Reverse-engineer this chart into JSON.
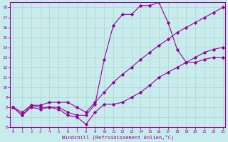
{
  "xlabel": "Windchill (Refroidissement éolien,°C)",
  "background_color": "#c8ecec",
  "grid_color": "#b0d8d8",
  "line_color": "#990099",
  "xlim": [
    0,
    23
  ],
  "ylim": [
    6,
    18.5
  ],
  "xticks": [
    0,
    1,
    2,
    3,
    4,
    5,
    6,
    7,
    8,
    9,
    10,
    11,
    12,
    13,
    14,
    15,
    16,
    17,
    18,
    19,
    20,
    21,
    22,
    23
  ],
  "yticks": [
    6,
    7,
    8,
    9,
    10,
    11,
    12,
    13,
    14,
    15,
    16,
    17,
    18
  ],
  "line1_x": [
    0,
    1,
    2,
    3,
    4,
    5,
    6,
    7,
    8,
    9,
    10,
    11,
    12,
    13,
    14,
    15,
    16,
    17,
    18,
    19,
    20,
    21,
    22,
    23
  ],
  "line1_y": [
    8.0,
    7.2,
    8.2,
    8.0,
    8.0,
    8.0,
    7.5,
    7.2,
    7.2,
    8.3,
    12.8,
    16.2,
    17.3,
    17.3,
    18.2,
    18.2,
    18.5,
    16.5,
    13.8,
    12.5,
    12.5,
    12.8,
    13.0,
    13.0
  ],
  "line2_x": [
    0,
    1,
    2,
    3,
    4,
    5,
    6,
    7,
    8,
    9,
    10,
    11,
    12,
    13,
    14,
    15,
    16,
    17,
    18,
    19,
    20,
    21,
    22,
    23
  ],
  "line2_y": [
    8.0,
    7.5,
    8.2,
    8.2,
    8.5,
    8.5,
    8.5,
    8.0,
    7.5,
    8.5,
    9.5,
    10.5,
    11.3,
    12.0,
    12.8,
    13.5,
    14.2,
    14.8,
    15.5,
    16.0,
    16.5,
    17.0,
    17.5,
    18.0
  ],
  "line3_x": [
    0,
    1,
    2,
    3,
    4,
    5,
    6,
    7,
    8,
    9,
    10,
    11,
    12,
    13,
    14,
    15,
    16,
    17,
    18,
    19,
    20,
    21,
    22,
    23
  ],
  "line3_y": [
    8.0,
    7.2,
    8.0,
    7.8,
    8.0,
    7.8,
    7.2,
    7.0,
    6.3,
    7.5,
    8.3,
    8.3,
    8.5,
    9.0,
    9.5,
    10.2,
    11.0,
    11.5,
    12.0,
    12.5,
    13.0,
    13.5,
    13.8,
    14.0
  ]
}
